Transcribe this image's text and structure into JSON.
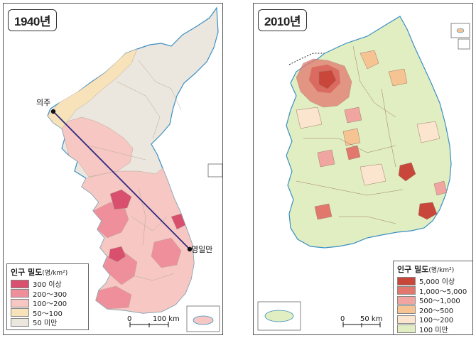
{
  "left_map": {
    "year": "1940년",
    "places": {
      "uiju": "의주",
      "yeongilman": "영일만"
    },
    "legend": {
      "title": "인구 밀도",
      "unit": "(명/km²)",
      "items": [
        {
          "label": "300 이상",
          "color": "#d8506e"
        },
        {
          "label": "200～300",
          "color": "#ef8f9b"
        },
        {
          "label": "100～200",
          "color": "#f6c7c3"
        },
        {
          "label": "50～100",
          "color": "#f8e2b9"
        },
        {
          "label": "50 미만",
          "color": "#ebe6de"
        }
      ]
    },
    "scale": {
      "zero": "0",
      "end": "100 km"
    }
  },
  "right_map": {
    "year": "2010년",
    "legend": {
      "title": "인구 밀도",
      "unit": "(명/km²)",
      "items": [
        {
          "label": "5,000 이상",
          "color": "#c9463a"
        },
        {
          "label": "1,000～5,000",
          "color": "#e2786d"
        },
        {
          "label": "500～1,000",
          "color": "#f0a5a1"
        },
        {
          "label": "200～500",
          "color": "#f6c393"
        },
        {
          "label": "100～200",
          "color": "#fbe5cf"
        },
        {
          "label": "100 미만",
          "color": "#e0eec1"
        }
      ]
    },
    "scale": {
      "zero": "0",
      "end": "50 km"
    }
  }
}
